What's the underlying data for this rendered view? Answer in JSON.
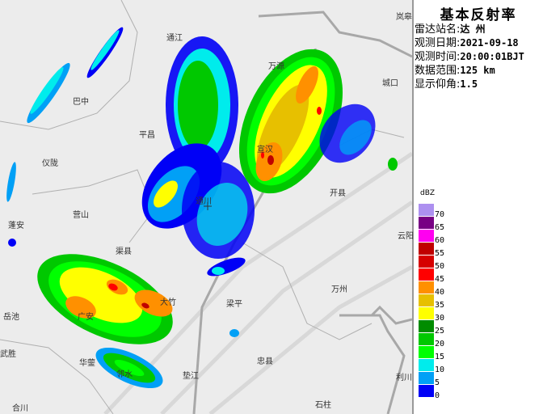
{
  "panel": {
    "title": "基本反射率",
    "rows": [
      {
        "label": "雷达站名:",
        "value": "达 州"
      },
      {
        "label": "观测日期:",
        "value": "2021-09-18"
      },
      {
        "label": "观测时间:",
        "value": "20:00:01BJT"
      },
      {
        "label": "数据范围:",
        "value": "125 km"
      },
      {
        "label": "显示仰角:",
        "value": "1.5"
      }
    ]
  },
  "legend": {
    "unit": "dBZ",
    "items": [
      {
        "label": "70",
        "color": "#ad90f0"
      },
      {
        "label": "65",
        "color": "#780084"
      },
      {
        "label": "60",
        "color": "#ff00f0"
      },
      {
        "label": "55",
        "color": "#c00000"
      },
      {
        "label": "50",
        "color": "#d60000"
      },
      {
        "label": "45",
        "color": "#ff0000"
      },
      {
        "label": "40",
        "color": "#ff9000"
      },
      {
        "label": "35",
        "color": "#e7c000"
      },
      {
        "label": "30",
        "color": "#ffff00"
      },
      {
        "label": "25",
        "color": "#008c00"
      },
      {
        "label": "20",
        "color": "#00c800"
      },
      {
        "label": "15",
        "color": "#00ff00"
      },
      {
        "label": "10",
        "color": "#00ecec"
      },
      {
        "label": "5",
        "color": "#01a0f6"
      },
      {
        "label": "0",
        "color": "#0000f6"
      }
    ]
  },
  "places": [
    "通江",
    "巴中",
    "平昌",
    "仪陇",
    "营山",
    "蓬安",
    "通川",
    "万源",
    "宣汉",
    "开县",
    "城口",
    "岚皋",
    "渠县",
    "岳池",
    "广安",
    "大竹",
    "武胜",
    "华蓥",
    "邻水",
    "垫江",
    "合川",
    "梁平",
    "万州",
    "云阳",
    "忠县",
    "利川",
    "石柱"
  ]
}
